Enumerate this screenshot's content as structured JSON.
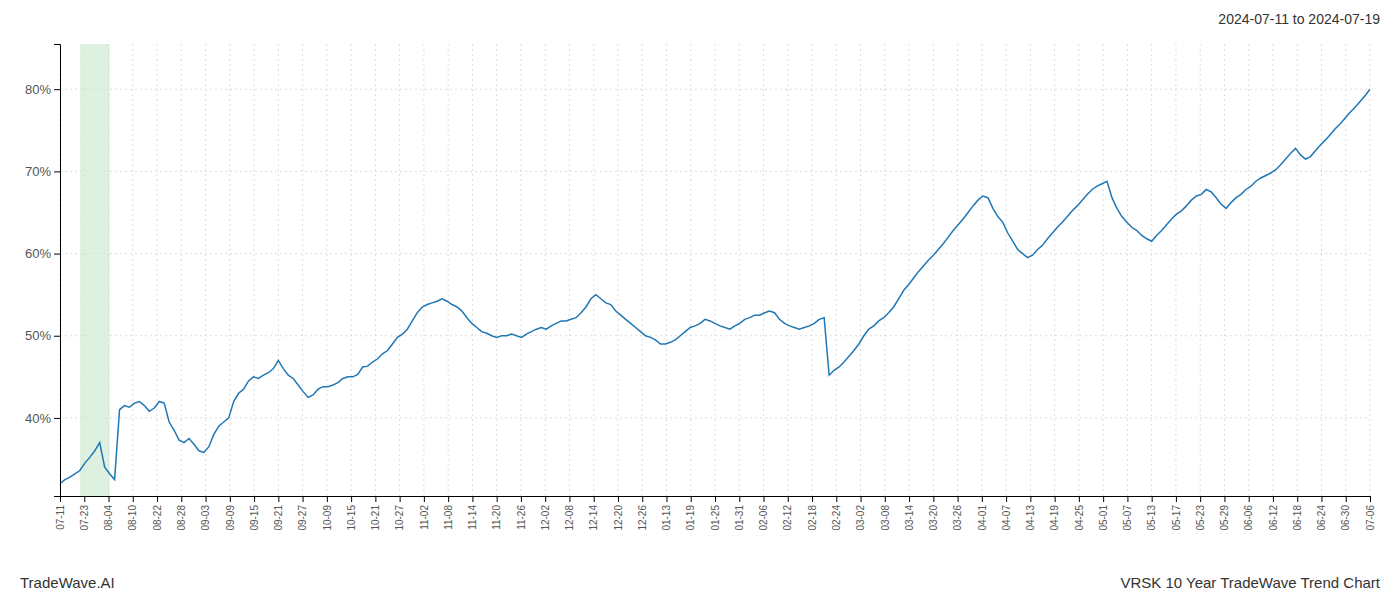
{
  "chart_data": {
    "type": "line",
    "title": "VRSK 10 Year TradeWave Trend Chart",
    "subtitle": "2024-07-11 to 2024-07-19",
    "annotations": [
      "TradeWave.AI"
    ],
    "color": "#2077b4",
    "grid": true,
    "band": {
      "x": [
        4,
        10
      ],
      "color": "#c8e6c9"
    },
    "xlim": [
      0,
      264
    ],
    "xticks": [
      {
        "value": 0,
        "label": "07-11"
      },
      {
        "value": 4.888888888888889,
        "label": "07-23"
      },
      {
        "value": 9.777777777777779,
        "label": "08-04"
      },
      {
        "value": 14.666666666666666,
        "label": "08-10"
      },
      {
        "value": 19.555555555555557,
        "label": "08-22"
      },
      {
        "value": 24.444444444444443,
        "label": "08-28"
      },
      {
        "value": 29.333333333333332,
        "label": "09-03"
      },
      {
        "value": 34.22222222222222,
        "label": "09-09"
      },
      {
        "value": 39.111111111111114,
        "label": "09-15"
      },
      {
        "value": 44,
        "label": "09-21"
      },
      {
        "value": 48.888888888888886,
        "label": "09-27"
      },
      {
        "value": 53.77777777777778,
        "label": "10-09"
      },
      {
        "value": 58.666666666666664,
        "label": "10-15"
      },
      {
        "value": 63.55555555555556,
        "label": "10-21"
      },
      {
        "value": 68.44444444444444,
        "label": "10-27"
      },
      {
        "value": 73.33333333333333,
        "label": "11-02"
      },
      {
        "value": 78.22222222222223,
        "label": "11-08"
      },
      {
        "value": 83.11111111111111,
        "label": "11-14"
      },
      {
        "value": 88,
        "label": "11-20"
      },
      {
        "value": 92.88888888888889,
        "label": "11-26"
      },
      {
        "value": 97.77777777777777,
        "label": "12-02"
      },
      {
        "value": 102.66666666666667,
        "label": "12-08"
      },
      {
        "value": 107.55555555555556,
        "label": "12-14"
      },
      {
        "value": 112.44444444444444,
        "label": "12-20"
      },
      {
        "value": 117.33333333333333,
        "label": "12-26"
      },
      {
        "value": 122.22222222222223,
        "label": "01-13"
      },
      {
        "value": 127.11111111111111,
        "label": "01-19"
      },
      {
        "value": 132,
        "label": "01-25"
      },
      {
        "value": 136.88888888888889,
        "label": "01-31"
      },
      {
        "value": 141.77777777777777,
        "label": "02-06"
      },
      {
        "value": 146.66666666666666,
        "label": "02-12"
      },
      {
        "value": 151.55555555555554,
        "label": "02-18"
      },
      {
        "value": 156.44444444444446,
        "label": "02-24"
      },
      {
        "value": 161.33333333333334,
        "label": "03-02"
      },
      {
        "value": 166.22222222222223,
        "label": "03-08"
      },
      {
        "value": 171.11111111111111,
        "label": "03-14"
      },
      {
        "value": 176,
        "label": "03-20"
      },
      {
        "value": 180.88888888888889,
        "label": "03-26"
      },
      {
        "value": 185.77777777777777,
        "label": "04-01"
      },
      {
        "value": 190.66666666666666,
        "label": "04-07"
      },
      {
        "value": 195.55555555555554,
        "label": "04-13"
      },
      {
        "value": 200.44444444444446,
        "label": "04-19"
      },
      {
        "value": 205.33333333333334,
        "label": "04-25"
      },
      {
        "value": 210.22222222222223,
        "label": "05-01"
      },
      {
        "value": 215.11111111111111,
        "label": "05-07"
      },
      {
        "value": 220,
        "label": "05-13"
      },
      {
        "value": 224.88888888888889,
        "label": "05-17"
      },
      {
        "value": 229.77777777777777,
        "label": "05-23"
      },
      {
        "value": 234.66666666666666,
        "label": "05-29"
      },
      {
        "value": 239.55555555555554,
        "label": "06-06"
      },
      {
        "value": 244.44444444444446,
        "label": "06-12"
      },
      {
        "value": 249.33333333333334,
        "label": "06-18"
      },
      {
        "value": 254.22222222222223,
        "label": "06-24"
      },
      {
        "value": 259.1111111111111,
        "label": "06-30"
      },
      {
        "value": 264,
        "label": "07-06"
      }
    ],
    "ylim": [
      0.305,
      0.855
    ],
    "yticks": [
      {
        "value": 0.4,
        "label": "40%"
      },
      {
        "value": 0.5,
        "label": "50%"
      },
      {
        "value": 0.6,
        "label": "60%"
      },
      {
        "value": 0.7,
        "label": "70%"
      },
      {
        "value": 0.8,
        "label": "80%"
      }
    ],
    "values": [
      0.32,
      0.325,
      0.328,
      0.332,
      0.336,
      0.345,
      0.352,
      0.36,
      0.37,
      0.34,
      0.332,
      0.325,
      0.41,
      0.415,
      0.413,
      0.418,
      0.42,
      0.415,
      0.408,
      0.412,
      0.42,
      0.418,
      0.395,
      0.385,
      0.373,
      0.37,
      0.375,
      0.368,
      0.36,
      0.358,
      0.365,
      0.38,
      0.39,
      0.395,
      0.4,
      0.42,
      0.43,
      0.435,
      0.445,
      0.45,
      0.448,
      0.452,
      0.455,
      0.46,
      0.47,
      0.46,
      0.452,
      0.448,
      0.44,
      0.432,
      0.425,
      0.428,
      0.435,
      0.438,
      0.438,
      0.44,
      0.443,
      0.448,
      0.45,
      0.45,
      0.453,
      0.462,
      0.463,
      0.468,
      0.472,
      0.478,
      0.482,
      0.49,
      0.498,
      0.502,
      0.508,
      0.518,
      0.528,
      0.535,
      0.538,
      0.54,
      0.542,
      0.545,
      0.542,
      0.538,
      0.535,
      0.53,
      0.522,
      0.515,
      0.51,
      0.505,
      0.503,
      0.5,
      0.498,
      0.5,
      0.5,
      0.502,
      0.5,
      0.498,
      0.502,
      0.505,
      0.508,
      0.51,
      0.508,
      0.512,
      0.515,
      0.518,
      0.518,
      0.52,
      0.522,
      0.528,
      0.535,
      0.545,
      0.55,
      0.545,
      0.54,
      0.538,
      0.53,
      0.525,
      0.52,
      0.515,
      0.51,
      0.505,
      0.5,
      0.498,
      0.495,
      0.49,
      0.49,
      0.492,
      0.495,
      0.5,
      0.505,
      0.51,
      0.512,
      0.515,
      0.52,
      0.518,
      0.515,
      0.512,
      0.51,
      0.508,
      0.512,
      0.515,
      0.52,
      0.522,
      0.525,
      0.525,
      0.528,
      0.53,
      0.528,
      0.52,
      0.515,
      0.512,
      0.51,
      0.508,
      0.51,
      0.512,
      0.515,
      0.52,
      0.522,
      0.452,
      0.458,
      0.462,
      0.468,
      0.475,
      0.482,
      0.49,
      0.5,
      0.508,
      0.512,
      0.518,
      0.522,
      0.528,
      0.535,
      0.545,
      0.555,
      0.562,
      0.57,
      0.578,
      0.585,
      0.592,
      0.598,
      0.605,
      0.612,
      0.62,
      0.628,
      0.635,
      0.642,
      0.65,
      0.658,
      0.665,
      0.67,
      0.668,
      0.655,
      0.645,
      0.638,
      0.625,
      0.615,
      0.605,
      0.6,
      0.595,
      0.598,
      0.605,
      0.61,
      0.618,
      0.625,
      0.632,
      0.638,
      0.645,
      0.652,
      0.658,
      0.665,
      0.672,
      0.678,
      0.682,
      0.685,
      0.688,
      0.668,
      0.655,
      0.645,
      0.638,
      0.632,
      0.628,
      0.622,
      0.618,
      0.615,
      0.622,
      0.628,
      0.635,
      0.642,
      0.648,
      0.652,
      0.658,
      0.665,
      0.67,
      0.672,
      0.678,
      0.675,
      0.668,
      0.66,
      0.655,
      0.662,
      0.668,
      0.672,
      0.678,
      0.682,
      0.688,
      0.692,
      0.695,
      0.698,
      0.702,
      0.708,
      0.715,
      0.722,
      0.728,
      0.72,
      0.715,
      0.718,
      0.725,
      0.732,
      0.738,
      0.745,
      0.752,
      0.758,
      0.765,
      0.772,
      0.778,
      0.785,
      0.792,
      0.8
    ]
  }
}
